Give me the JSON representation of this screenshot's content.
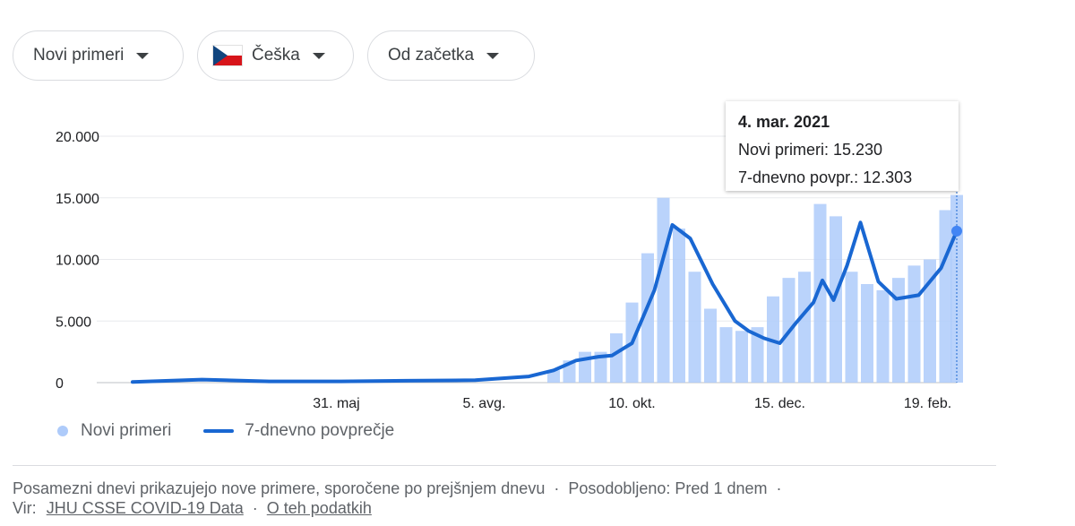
{
  "filters": {
    "metric": "Novi primeri",
    "country": "Češka",
    "range": "Od začetka"
  },
  "tooltip": {
    "date": "4. mar. 2021",
    "line1": "Novi primeri: 15.230",
    "line2": "7-dnevno povpr.: 12.303"
  },
  "legend": {
    "bars": "Novi primeri",
    "line": "7-dnevno povprečje"
  },
  "footer": {
    "note": "Posamezni dnevi prikazujejo nove primere, sporočene po prejšnjem dnevu",
    "updated": "Posodobljeno: Pred 1 dnem",
    "source_prefix": "Vir:",
    "source_link": "JHU CSSE COVID-19 Data",
    "about_link": "O teh podatkih"
  },
  "colors": {
    "bars": "#aecbfa",
    "line": "#1967d2",
    "grid": "#e8eaed"
  },
  "chart_data": {
    "type": "bar",
    "title": "",
    "xlabel": "",
    "ylabel": "",
    "ylim": [
      0,
      20000
    ],
    "yticks": [
      0,
      5000,
      10000,
      15000,
      20000
    ],
    "ytick_labels": [
      "0",
      "5.000",
      "10.000",
      "15.000",
      "20.000"
    ],
    "xticks": [
      {
        "label": "31. maj",
        "date": "2020-05-31"
      },
      {
        "label": "5. avg.",
        "date": "2020-08-05"
      },
      {
        "label": "10. okt.",
        "date": "2020-10-10"
      },
      {
        "label": "15. dec.",
        "date": "2020-12-15"
      },
      {
        "label": "19. feb.",
        "date": "2021-02-19"
      }
    ],
    "x_start": "2020-03-01",
    "x_end": "2021-03-04",
    "series": [
      {
        "name": "Novi primeri",
        "type": "bar",
        "x": [
          "2020-09-05",
          "2020-09-12",
          "2020-09-19",
          "2020-09-26",
          "2020-10-03",
          "2020-10-10",
          "2020-10-17",
          "2020-10-24",
          "2020-10-31",
          "2020-11-07",
          "2020-11-14",
          "2020-11-21",
          "2020-11-28",
          "2020-12-05",
          "2020-12-12",
          "2020-12-19",
          "2020-12-26",
          "2021-01-02",
          "2021-01-09",
          "2021-01-16",
          "2021-01-23",
          "2021-01-30",
          "2021-02-06",
          "2021-02-13",
          "2021-02-20",
          "2021-02-27",
          "2021-03-04"
        ],
        "values": [
          1000,
          1800,
          2500,
          2500,
          4000,
          6500,
          10500,
          15000,
          12500,
          9000,
          6000,
          4500,
          4200,
          4500,
          7000,
          8500,
          9000,
          14500,
          13500,
          9000,
          8000,
          7500,
          8500,
          9500,
          10000,
          14000,
          15230
        ]
      },
      {
        "name": "7-dnevno povprečje",
        "type": "line",
        "x": [
          "2020-03-01",
          "2020-04-01",
          "2020-05-01",
          "2020-06-01",
          "2020-07-01",
          "2020-08-01",
          "2020-08-25",
          "2020-09-05",
          "2020-09-15",
          "2020-09-25",
          "2020-10-01",
          "2020-10-10",
          "2020-10-20",
          "2020-10-28",
          "2020-11-05",
          "2020-11-15",
          "2020-11-25",
          "2020-12-01",
          "2020-12-08",
          "2020-12-15",
          "2020-12-22",
          "2020-12-30",
          "2021-01-03",
          "2021-01-08",
          "2021-01-14",
          "2021-01-20",
          "2021-01-28",
          "2021-02-05",
          "2021-02-15",
          "2021-02-25",
          "2021-03-04"
        ],
        "values": [
          50,
          250,
          100,
          100,
          150,
          200,
          500,
          1000,
          1800,
          2100,
          2200,
          3200,
          7500,
          12800,
          11700,
          8000,
          5000,
          4200,
          3600,
          3200,
          4800,
          6500,
          8300,
          6700,
          9500,
          13000,
          8200,
          6800,
          7100,
          9300,
          12303
        ]
      }
    ]
  }
}
